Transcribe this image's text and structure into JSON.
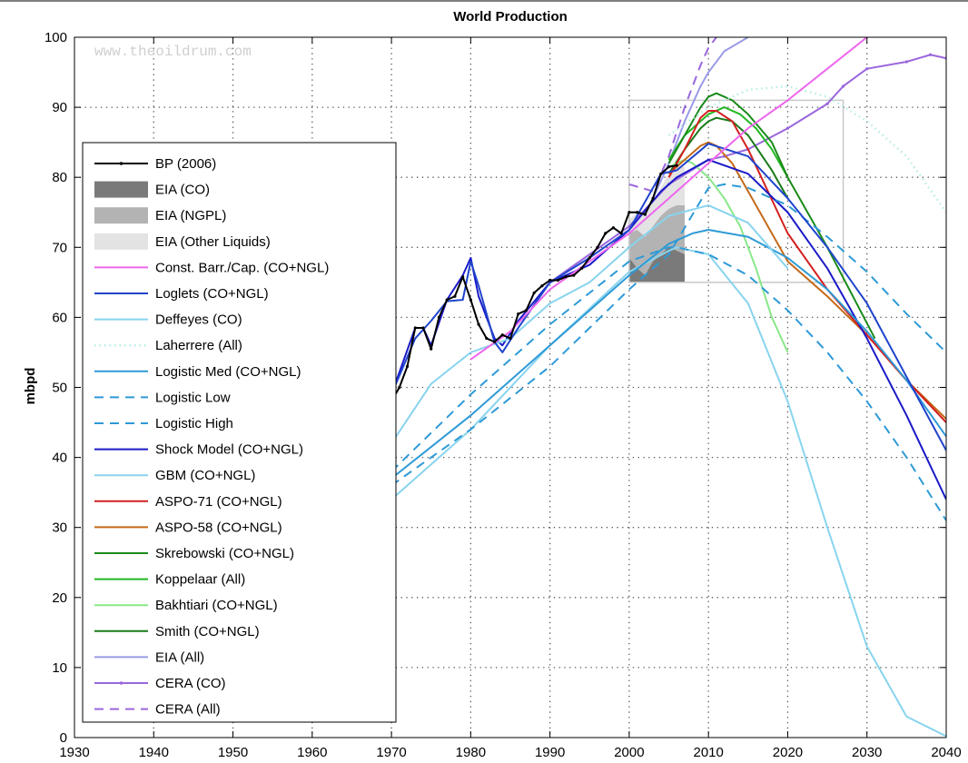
{
  "chart_data": {
    "type": "line",
    "title": "World Production",
    "xlabel": "",
    "ylabel": "mbpd",
    "watermark": "www.theoildrum.com",
    "xlim": [
      1930,
      2040
    ],
    "ylim": [
      0,
      100
    ],
    "xticks": [
      "1930",
      "1940",
      "1950",
      "1960",
      "1970",
      "1980",
      "1990",
      "2000",
      "2010",
      "2020",
      "2030",
      "2040"
    ],
    "yticks": [
      "0",
      "10",
      "20",
      "30",
      "40",
      "50",
      "60",
      "70",
      "80",
      "90",
      "100"
    ],
    "grid": true,
    "legend_position": "left",
    "series": [
      {
        "name": "BP (2006)",
        "color": "#000000",
        "style": "solid-marker",
        "x": [
          1970,
          1971,
          1972,
          1973,
          1974,
          1975,
          1976,
          1977,
          1978,
          1979,
          1980,
          1981,
          1982,
          1983,
          1984,
          1985,
          1986,
          1987,
          1988,
          1989,
          1990,
          1991,
          1992,
          1993,
          1994,
          1995,
          1996,
          1997,
          1998,
          1999,
          2000,
          2001,
          2002,
          2003,
          2004,
          2005,
          2006
        ],
        "y": [
          48,
          50,
          53,
          58.5,
          58.5,
          55.5,
          60,
          62.5,
          63,
          65.8,
          62.5,
          59,
          57,
          56.5,
          57.5,
          57,
          60.5,
          61,
          63.5,
          64.5,
          65.3,
          65.3,
          65.8,
          66,
          67,
          68.5,
          70,
          72,
          72.8,
          72,
          75,
          75,
          74.7,
          77,
          80.5,
          81.5,
          81.7
        ]
      },
      {
        "name": "EIA (CO)",
        "color": "#7a7a7a",
        "style": "area",
        "x": [
          2000,
          2001,
          2002,
          2003,
          2004,
          2005,
          2006,
          2007
        ],
        "y": [
          68.5,
          67,
          66,
          68,
          69,
          70,
          69.5,
          69
        ]
      },
      {
        "name": "EIA (NGPL)",
        "color": "#b3b3b3",
        "style": "area",
        "x": [
          2000,
          2001,
          2002,
          2003,
          2004,
          2005,
          2006,
          2007
        ],
        "y": [
          72,
          72.5,
          71.5,
          73,
          74.5,
          75.5,
          76,
          76
        ]
      },
      {
        "name": "EIA (Other Liquids)",
        "color": "#e3e3e3",
        "style": "area",
        "x": [
          2000,
          2001,
          2002,
          2003,
          2004,
          2005,
          2006,
          2007
        ],
        "y": [
          74,
          75,
          74.5,
          76.5,
          78.5,
          80.5,
          81.5,
          81.5
        ]
      },
      {
        "name": "Const. Barr./Cap. (CO+NGL)",
        "color": "#ee66ee",
        "style": "solid",
        "x": [
          1980,
          1985,
          1990,
          1995,
          2000,
          2005,
          2010,
          2015,
          2020,
          2025,
          2030
        ],
        "y": [
          54,
          58,
          64,
          68,
          72,
          77,
          82,
          87,
          91,
          95.5,
          100
        ]
      },
      {
        "name": "Loglets (CO+NGL)",
        "color": "#1f44cc",
        "style": "solid",
        "x": [
          1970,
          1973,
          1975,
          1977,
          1978,
          1979,
          1980,
          1981,
          1983,
          1984,
          1986,
          1990,
          1995,
          2000,
          2004,
          2006,
          2010,
          2015,
          2020,
          2025,
          2030,
          2040
        ],
        "y": [
          49,
          57,
          59.5,
          62.3,
          62.4,
          62.5,
          68,
          64.5,
          56.5,
          55,
          58.5,
          65,
          68.5,
          72.5,
          80.5,
          81,
          84.8,
          83,
          77,
          70,
          62,
          41
        ]
      },
      {
        "name": "Deffeyes (CO)",
        "color": "#88d4ee",
        "style": "solid",
        "x": [
          1970,
          1975,
          1980,
          1985,
          1990,
          1995,
          2000,
          2005,
          2010,
          2015,
          2020
        ],
        "y": [
          42,
          50.5,
          55,
          57,
          62,
          65,
          70,
          74.5,
          76,
          73.5,
          67
        ]
      },
      {
        "name": "Laherrere (All)",
        "color": "#b6ede6",
        "style": "dotted",
        "x": [
          2005,
          2010,
          2015,
          2020,
          2025,
          2030,
          2035,
          2040
        ],
        "y": [
          86,
          90,
          92.5,
          93,
          91.5,
          88,
          83,
          75
        ]
      },
      {
        "name": "Logistic Med (CO+NGL)",
        "color": "#2e9ad6",
        "style": "solid",
        "x": [
          1970,
          1980,
          1990,
          2000,
          2005,
          2008,
          2010,
          2015,
          2020,
          2025,
          2030,
          2035,
          2040
        ],
        "y": [
          37,
          46,
          56,
          66,
          70.5,
          72,
          72.5,
          71.5,
          68.5,
          64,
          58,
          51,
          43
        ]
      },
      {
        "name": "Logistic Low",
        "color": "#2e9ad6",
        "style": "dashed",
        "x": [
          1970,
          1980,
          1990,
          2000,
          2005,
          2006,
          2010,
          2015,
          2020,
          2025,
          2030,
          2035,
          2040
        ],
        "y": [
          38,
          49,
          59,
          68,
          70,
          70,
          69,
          66,
          61,
          55,
          48,
          40,
          31
        ]
      },
      {
        "name": "Logistic High",
        "color": "#2e9ad6",
        "style": "dashed",
        "x": [
          1970,
          1980,
          1990,
          2000,
          2005,
          2010,
          2012,
          2015,
          2020,
          2025,
          2030,
          2035,
          2040
        ],
        "y": [
          36,
          44,
          53,
          64,
          69,
          78.5,
          79,
          78.5,
          76,
          71.5,
          66.5,
          60.5,
          55
        ]
      },
      {
        "name": "Shock Model (CO+NGL)",
        "color": "#1a1ac8",
        "style": "solid",
        "x": [
          1970,
          1973,
          1974,
          1975,
          1977,
          1979,
          1980,
          1981,
          1983,
          1984,
          1986,
          1990,
          1995,
          2000,
          2004,
          2006,
          2010,
          2015,
          2020,
          2025,
          2030,
          2035,
          2040
        ],
        "y": [
          49,
          58.5,
          58.5,
          56,
          62.5,
          66,
          68.5,
          63,
          57,
          56,
          59.5,
          65,
          67.5,
          72.5,
          78,
          80,
          82.5,
          80.5,
          75,
          67,
          57,
          46,
          34
        ]
      },
      {
        "name": "GBM (CO+NGL)",
        "color": "#88d4ee",
        "style": "solid",
        "x": [
          1970,
          1980,
          1990,
          2000,
          2005,
          2006,
          2010,
          2015,
          2020,
          2025,
          2030,
          2035,
          2040
        ],
        "y": [
          34,
          44,
          56,
          66.5,
          69.5,
          70,
          69,
          62,
          48,
          30,
          13,
          3,
          0.2
        ]
      },
      {
        "name": "ASPO-71 (CO+NGL)",
        "color": "#d42020",
        "style": "solid",
        "x": [
          2005,
          2007,
          2009,
          2010,
          2011,
          2013,
          2015,
          2020,
          2025,
          2030,
          2035,
          2040
        ],
        "y": [
          80,
          84,
          88.5,
          89.5,
          89.5,
          88,
          84,
          72,
          64,
          57.5,
          51,
          45
        ]
      },
      {
        "name": "ASPO-58 (CO+NGL)",
        "color": "#c46a1a",
        "style": "solid",
        "x": [
          2005,
          2007,
          2009,
          2010,
          2011,
          2013,
          2015,
          2020,
          2025,
          2030,
          2035,
          2040
        ],
        "y": [
          80.5,
          82.5,
          84.5,
          85,
          84.5,
          82,
          78,
          68,
          63,
          57.5,
          51,
          45.5
        ]
      },
      {
        "name": "Skrebowski (CO+NGL)",
        "color": "#1a8a1a",
        "style": "solid",
        "x": [
          2005,
          2007,
          2009,
          2010,
          2011,
          2013,
          2015,
          2018,
          2020,
          2025,
          2031
        ],
        "y": [
          82,
          86,
          90,
          91.5,
          92,
          91,
          89,
          85,
          80,
          70,
          57
        ]
      },
      {
        "name": "Koppelaar (All)",
        "color": "#22b822",
        "style": "solid",
        "x": [
          2005,
          2007,
          2009,
          2010,
          2012,
          2014,
          2016,
          2018,
          2020
        ],
        "y": [
          82.5,
          86,
          88,
          89,
          90,
          89,
          87,
          84,
          80
        ]
      },
      {
        "name": "Bakhtiari (CO+NGL)",
        "color": "#88e888",
        "style": "solid",
        "x": [
          2005,
          2007,
          2008,
          2010,
          2012,
          2014,
          2016,
          2018,
          2020
        ],
        "y": [
          81.5,
          82.5,
          82,
          80,
          77,
          73,
          67,
          60,
          55
        ]
      },
      {
        "name": "Smith (CO+NGL)",
        "color": "#1a7a1a",
        "style": "solid",
        "x": [
          2005,
          2007,
          2009,
          2010,
          2011,
          2013,
          2015,
          2018,
          2020
        ],
        "y": [
          80.5,
          84,
          87,
          88,
          88.5,
          88,
          86,
          81,
          77
        ]
      },
      {
        "name": "EIA (All)",
        "color": "#9a9ae8",
        "style": "solid",
        "x": [
          2003,
          2005,
          2007,
          2009,
          2010,
          2012,
          2015
        ],
        "y": [
          77,
          82,
          88,
          93,
          95,
          98,
          100
        ]
      },
      {
        "name": "CERA (CO)",
        "color": "#9a66dd",
        "style": "solid-marker",
        "x": [
          1990,
          2000,
          2005,
          2010,
          2012,
          2015,
          2020,
          2025,
          2027,
          2030,
          2035,
          2038,
          2040
        ],
        "y": [
          65,
          73,
          79,
          82.5,
          83,
          84,
          87,
          90.5,
          93,
          95.5,
          96.5,
          97.5,
          97
        ]
      },
      {
        "name": "CERA (All)",
        "color": "#9a66dd",
        "style": "dashed",
        "x": [
          2000,
          2003,
          2005,
          2007,
          2009,
          2010,
          2011
        ],
        "y": [
          79,
          78,
          83,
          90,
          96,
          98.5,
          100
        ]
      }
    ],
    "annotations": {
      "zoom_box": {
        "x": [
          2000,
          2027
        ],
        "y": [
          65,
          91
        ]
      }
    }
  }
}
